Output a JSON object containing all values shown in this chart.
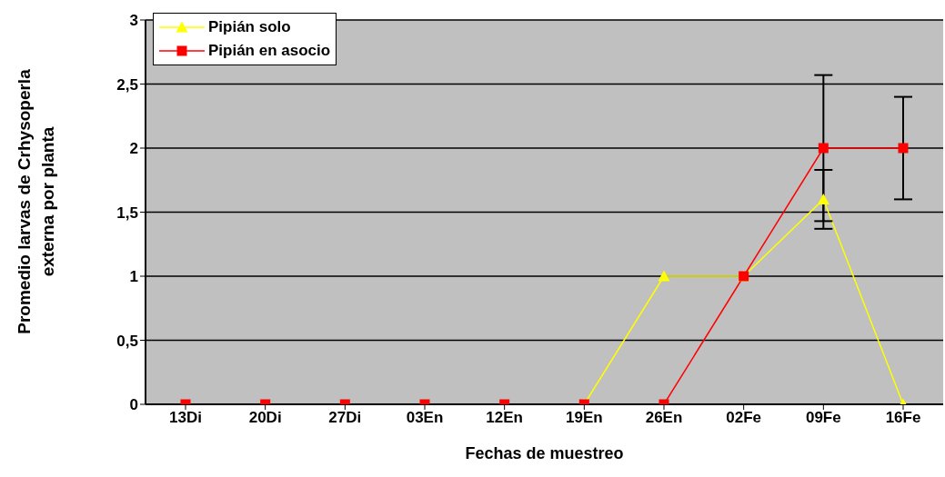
{
  "chart_data": {
    "type": "line",
    "xlabel": "Fechas de muestreo",
    "ylabel": "Promedio larvas de Crhysoperla externa por planta",
    "categories": [
      "13Di",
      "20Di",
      "27Di",
      "03En",
      "12En",
      "19En",
      "26En",
      "02Fe",
      "09Fe",
      "16Fe"
    ],
    "series": [
      {
        "name": "Pipián solo",
        "color": "#ffff00",
        "marker": "triangle",
        "values": [
          null,
          null,
          null,
          null,
          null,
          0,
          1,
          1,
          1.6,
          0
        ],
        "errors": [
          null,
          null,
          null,
          null,
          null,
          null,
          null,
          null,
          0.23,
          null
        ]
      },
      {
        "name": "Pipián en asocio",
        "color": "#ff0000",
        "marker": "square",
        "values": [
          0,
          0,
          0,
          0,
          0,
          0,
          0,
          1,
          2,
          2
        ],
        "errors": [
          null,
          null,
          null,
          null,
          null,
          null,
          null,
          null,
          0.57,
          0.4
        ]
      }
    ],
    "ylim": [
      0,
      3
    ],
    "yticks": [
      0,
      {
        "value": 0.5,
        "label": "0,5"
      },
      1,
      {
        "value": 1.5,
        "label": "1,5"
      },
      2,
      {
        "value": 2.5,
        "label": "2,5"
      },
      3
    ],
    "grid": "y",
    "legend": "top left",
    "line_style": "solid"
  }
}
